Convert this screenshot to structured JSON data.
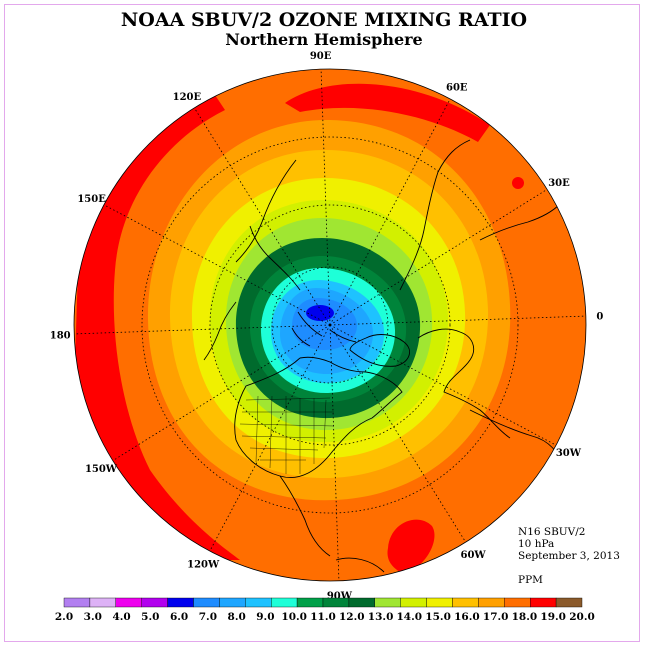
{
  "title": "NOAA SBUV/2 OZONE MIXING RATIO",
  "subtitle": "Northern Hemisphere",
  "longitude_labels": [
    {
      "text": "90E",
      "deg": 90
    },
    {
      "text": "60E",
      "deg": 60
    },
    {
      "text": "30E",
      "deg": 30
    },
    {
      "text": "0",
      "deg": 0
    },
    {
      "text": "30W",
      "deg": -30
    },
    {
      "text": "60W",
      "deg": -60
    },
    {
      "text": "90W",
      "deg": -90
    },
    {
      "text": "120W",
      "deg": -120
    },
    {
      "text": "150W",
      "deg": -150
    },
    {
      "text": "180",
      "deg": 180
    },
    {
      "text": "150E",
      "deg": 150
    },
    {
      "text": "120E",
      "deg": 120
    }
  ],
  "info": {
    "satellite": "N16 SBUV/2",
    "level": "10 hPa",
    "date": "September 3, 2013",
    "units": "PPM"
  },
  "colorbar": {
    "labels": [
      "2.0",
      "3.0",
      "4.0",
      "5.0",
      "6.0",
      "7.0",
      "8.0",
      "9.0",
      "10.0",
      "11.0",
      "12.0",
      "13.0",
      "14.0",
      "15.0",
      "16.0",
      "17.0",
      "18.0",
      "19.0",
      "20.0"
    ],
    "colors": [
      "#b27ff0",
      "#ddb2f6",
      "#ee00ee",
      "#b200ee",
      "#0000ee",
      "#1e8cff",
      "#1ea6ff",
      "#1ec2ff",
      "#1effd8",
      "#00a049",
      "#00843a",
      "#006b2d",
      "#a0e632",
      "#d2f000",
      "#f0f000",
      "#ffc000",
      "#ffa000",
      "#ff6e00",
      "#ff0000",
      "#8b5a2b"
    ]
  },
  "map_colors": {
    "max": "#ff0000",
    "band_18": "#ff6e00",
    "band_17": "#ffa000",
    "band_16": "#ffc000",
    "band_15": "#f0f000",
    "band_14": "#d2f000",
    "band_13": "#a0e632",
    "band_12": "#006b2d",
    "band_11": "#00843a",
    "band_10": "#1effd8",
    "band_9": "#1ec2ff",
    "band_8": "#1ea6ff",
    "band_7": "#1e8cff",
    "band_6": "#0000ee"
  }
}
